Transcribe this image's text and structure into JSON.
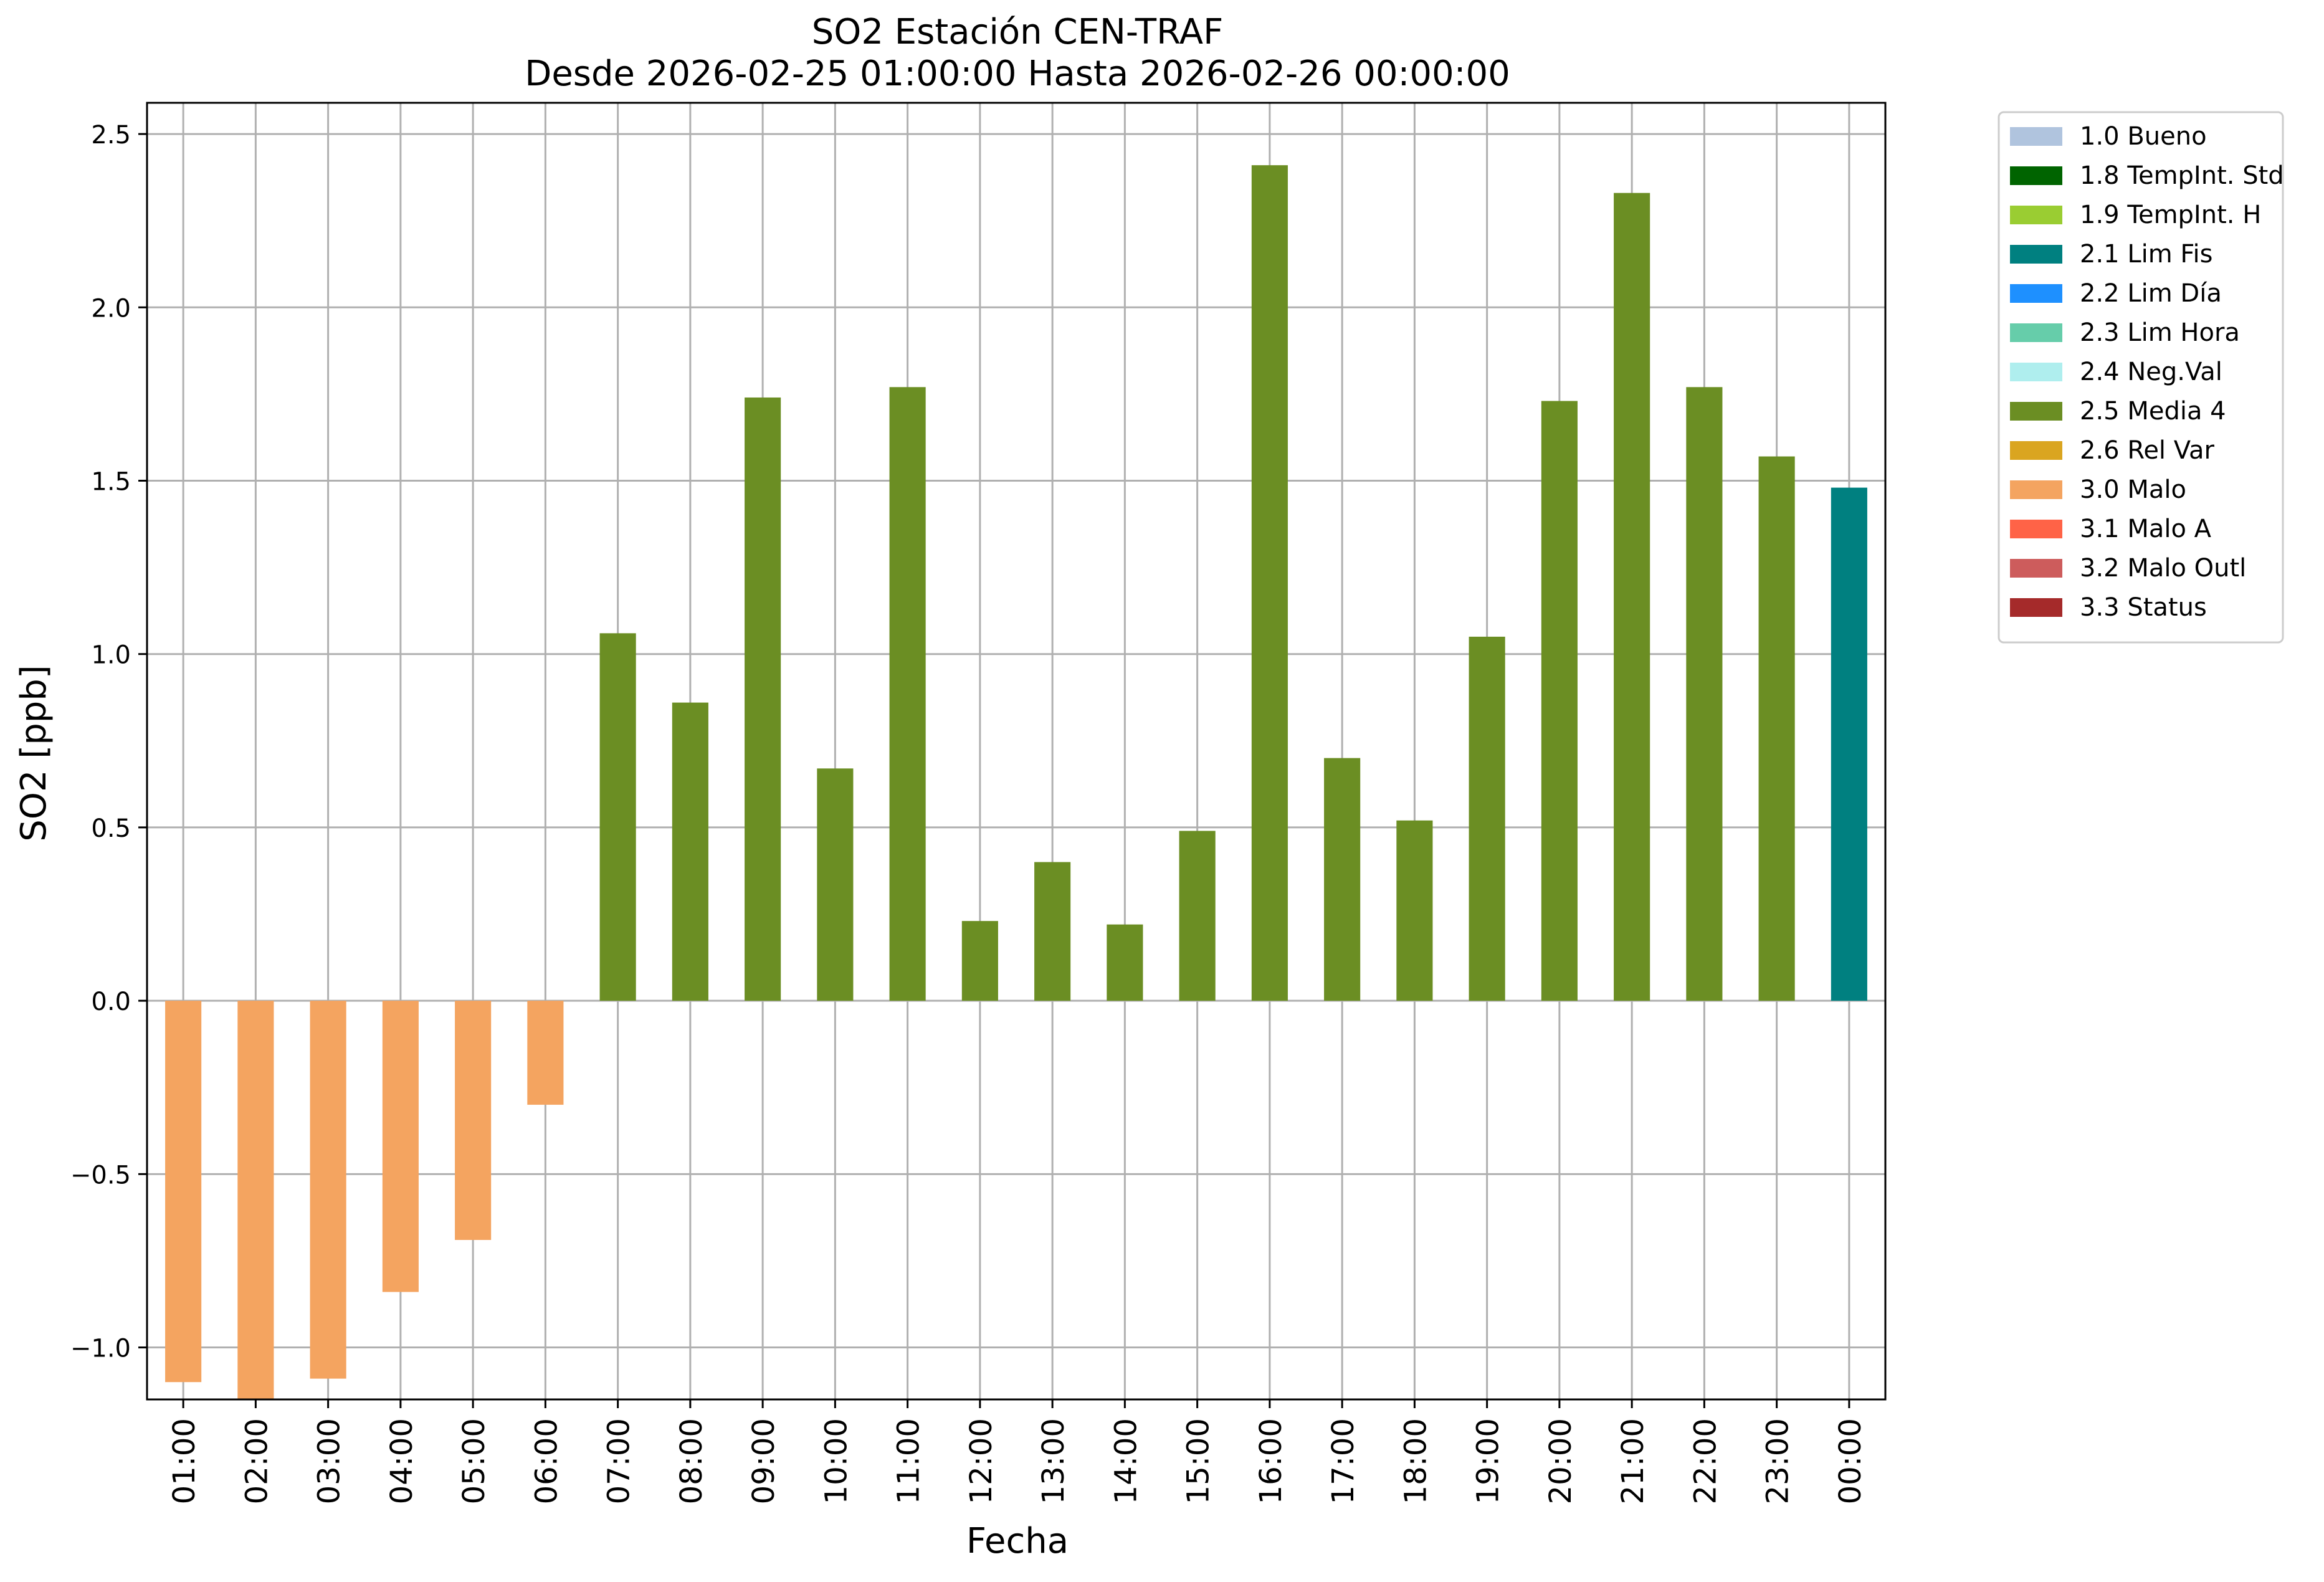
{
  "chart_data": {
    "type": "bar",
    "title": "SO2 Estación CEN-TRAF",
    "subtitle": "Desde 2026-02-25 01:00:00 Hasta 2026-02-26 00:00:00",
    "xlabel": "Fecha",
    "ylabel": "SO2 [ppb]",
    "ylim": [
      -1.15,
      2.59
    ],
    "yticks": [
      -1.0,
      -0.5,
      0.0,
      0.5,
      1.0,
      1.5,
      2.0,
      2.5
    ],
    "ytick_labels": [
      "−1.0",
      "−0.5",
      "0.0",
      "0.5",
      "1.0",
      "1.5",
      "2.0",
      "2.5"
    ],
    "grid": true,
    "legend_position": "outside-right-top",
    "categories": [
      "01:00",
      "02:00",
      "03:00",
      "04:00",
      "05:00",
      "06:00",
      "07:00",
      "08:00",
      "09:00",
      "10:00",
      "11:00",
      "12:00",
      "13:00",
      "14:00",
      "15:00",
      "16:00",
      "17:00",
      "18:00",
      "19:00",
      "20:00",
      "21:00",
      "22:00",
      "23:00",
      "00:00"
    ],
    "values": [
      -1.1,
      -1.16,
      -1.09,
      -0.84,
      -0.69,
      -0.3,
      1.06,
      0.86,
      1.74,
      0.67,
      1.77,
      0.23,
      0.4,
      0.22,
      0.49,
      2.41,
      0.7,
      0.52,
      1.05,
      1.73,
      2.33,
      1.77,
      1.57,
      1.48
    ],
    "bar_flags": [
      "3.0 Malo",
      "3.0 Malo",
      "3.0 Malo",
      "3.0 Malo",
      "3.0 Malo",
      "3.0 Malo",
      "2.5 Media 4",
      "2.5 Media 4",
      "2.5 Media 4",
      "2.5 Media 4",
      "2.5 Media 4",
      "2.5 Media 4",
      "2.5 Media 4",
      "2.5 Media 4",
      "2.5 Media 4",
      "2.5 Media 4",
      "2.5 Media 4",
      "2.5 Media 4",
      "2.5 Media 4",
      "2.5 Media 4",
      "2.5 Media 4",
      "2.5 Media 4",
      "2.5 Media 4",
      "2.1 Lim Fis"
    ],
    "legend": [
      {
        "label": "1.0 Bueno",
        "color": "#b0c4de"
      },
      {
        "label": "1.8 TempInt. Std",
        "color": "#006400"
      },
      {
        "label": "1.9 TempInt. H",
        "color": "#9acd32"
      },
      {
        "label": "2.1 Lim Fis",
        "color": "#008080"
      },
      {
        "label": "2.2 Lim Día",
        "color": "#1e90ff"
      },
      {
        "label": "2.3 Lim Hora",
        "color": "#66cdaa"
      },
      {
        "label": "2.4 Neg.Val",
        "color": "#afeeee"
      },
      {
        "label": "2.5 Media 4",
        "color": "#6b8e23"
      },
      {
        "label": "2.6 Rel Var",
        "color": "#daa520"
      },
      {
        "label": "3.0 Malo",
        "color": "#f4a460"
      },
      {
        "label": "3.1 Malo A",
        "color": "#ff6347"
      },
      {
        "label": "3.2 Malo Outl",
        "color": "#cd5c5c"
      },
      {
        "label": "3.3 Status",
        "color": "#a52a2a"
      }
    ]
  }
}
